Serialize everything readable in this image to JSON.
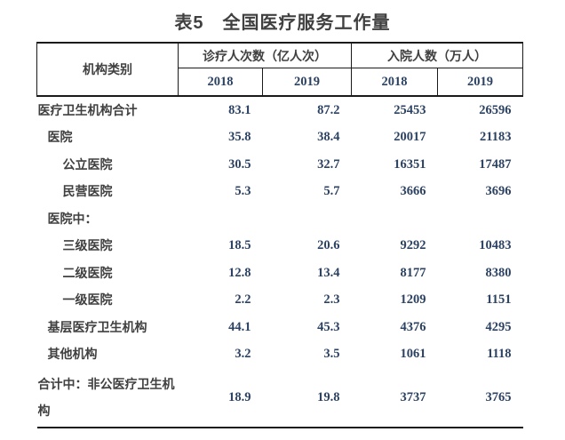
{
  "title": "表5　全国医疗服务工作量",
  "colors": {
    "background": "#ffffff",
    "text_label": "#404040",
    "text_number": "#2c4263",
    "border": "#1a1a1a"
  },
  "table": {
    "row_header_label": "机构类别",
    "groups": [
      {
        "label": "诊疗人次数（亿人次）",
        "years": [
          "2018",
          "2019"
        ]
      },
      {
        "label": "入院人数（万人）",
        "years": [
          "2018",
          "2019"
        ]
      }
    ],
    "rows": [
      {
        "label": "医疗卫生机构合计",
        "indent": 0,
        "values": [
          "83.1",
          "87.2",
          "25453",
          "26596"
        ]
      },
      {
        "label": "医院",
        "indent": 1,
        "values": [
          "35.8",
          "38.4",
          "20017",
          "21183"
        ]
      },
      {
        "label": "公立医院",
        "indent": 2,
        "values": [
          "30.5",
          "32.7",
          "16351",
          "17487"
        ]
      },
      {
        "label": "民营医院",
        "indent": 2,
        "values": [
          "5.3",
          "5.7",
          "3666",
          "3696"
        ]
      },
      {
        "label": "医院中：",
        "indent": 1,
        "values": [
          "",
          "",
          "",
          ""
        ]
      },
      {
        "label": "三级医院",
        "indent": 2,
        "values": [
          "18.5",
          "20.6",
          "9292",
          "10483"
        ]
      },
      {
        "label": "二级医院",
        "indent": 2,
        "values": [
          "12.8",
          "13.4",
          "8177",
          "8380"
        ]
      },
      {
        "label": "一级医院",
        "indent": 2,
        "values": [
          "2.2",
          "2.3",
          "1209",
          "1151"
        ]
      },
      {
        "label": "基层医疗卫生机构",
        "indent": 1,
        "values": [
          "44.1",
          "45.3",
          "4376",
          "4295"
        ]
      },
      {
        "label": "其他机构",
        "indent": 1,
        "values": [
          "3.2",
          "3.5",
          "1061",
          "1118"
        ]
      },
      {
        "label": "合计中：非公医疗卫生机构",
        "indent": 0,
        "values": [
          "18.9",
          "19.8",
          "3737",
          "3765"
        ]
      }
    ]
  }
}
